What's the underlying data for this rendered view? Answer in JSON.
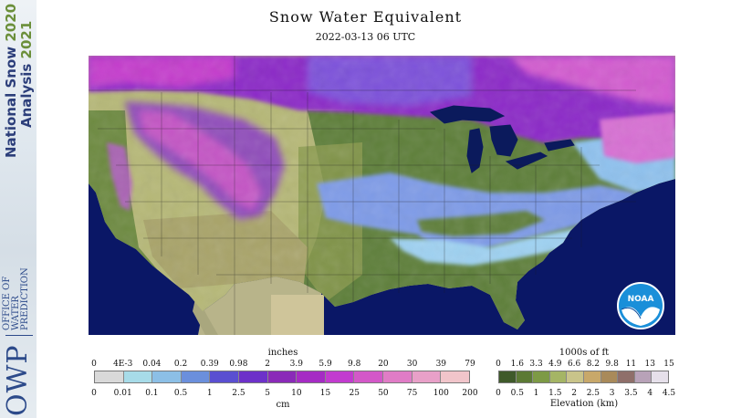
{
  "banner": {
    "line1_text": "National Snow",
    "line1_year": "2020",
    "line2_text": "Analysis",
    "line2_year": "2021",
    "logo_text": "OWP",
    "logo_sub": [
      "OFFICE OF",
      "WATER",
      "PREDICTION"
    ]
  },
  "header": {
    "title": "Snow Water Equivalent",
    "timestamp": "2022-03-13 06 UTC"
  },
  "swe_legend": {
    "unit_top": "inches",
    "unit_bottom": "cm",
    "top_ticks": [
      "0",
      "4E-3",
      "0.04",
      "0.2",
      "0.39",
      "0.98",
      "2",
      "3.9",
      "5.9",
      "9.8",
      "20",
      "30",
      "39",
      "79"
    ],
    "bottom_ticks": [
      "0",
      "0.01",
      "0.1",
      "0.5",
      "1",
      "2.5",
      "5",
      "10",
      "15",
      "25",
      "50",
      "75",
      "100",
      "200"
    ],
    "colors": [
      "#d9d9d9",
      "#a7dbe8",
      "#8cbfe6",
      "#6b8fdc",
      "#5a4fd1",
      "#6d31c9",
      "#8a2ab8",
      "#a52bc4",
      "#c23bcf",
      "#d358c8",
      "#e07cc6",
      "#e8a0c8",
      "#f1c5ca"
    ]
  },
  "elev_legend": {
    "unit_top": "1000s of ft",
    "unit_bottom": "Elevation (km)",
    "top_ticks": [
      "0",
      "1.6",
      "3.3",
      "4.9",
      "6.6",
      "8.2",
      "9.8",
      "11",
      "13",
      "15"
    ],
    "bottom_ticks": [
      "0",
      "0.5",
      "1",
      "1.5",
      "2",
      "2.5",
      "3",
      "3.5",
      "4",
      "4.5"
    ],
    "colors": [
      "#3f5a2a",
      "#5c7a34",
      "#7d9a45",
      "#a5b565",
      "#c9c48a",
      "#c8a86a",
      "#a98a5a",
      "#8f6f6a",
      "#b8a2b8",
      "#e6e0ea"
    ]
  },
  "logo": {
    "text": "NOAA"
  },
  "colors": {
    "ocean": "#0a1766",
    "canada_snow": "#9b2fd0",
    "heavy_snow": "#d35bd0",
    "light_snow": "#8cc3f0",
    "lowland": "#5e7f3a",
    "plains": "#b6b877",
    "great_lakes": "#0b1a5c",
    "mexico": "#cfc59a"
  }
}
